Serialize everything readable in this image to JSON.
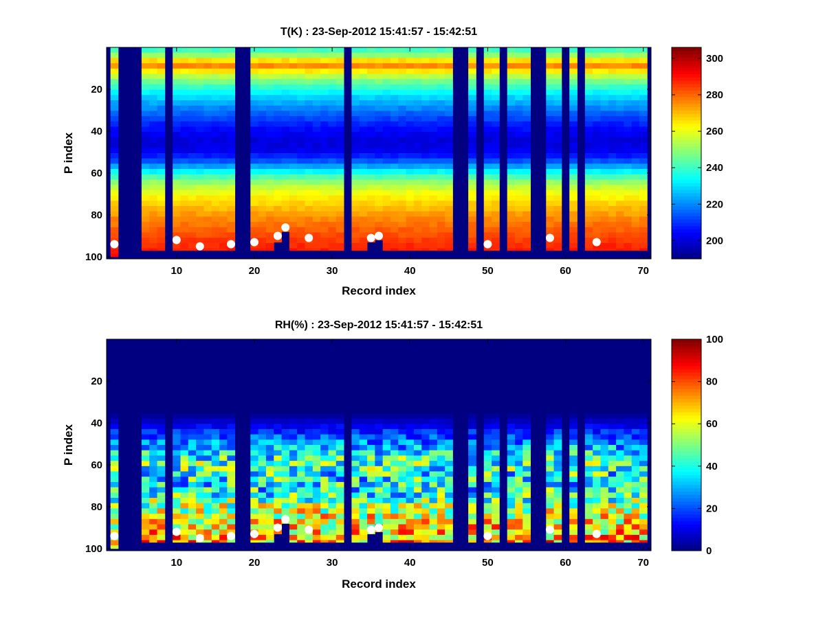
{
  "chart_data": [
    {
      "type": "heatmap",
      "title": "T(K) : 23-Sep-2012 15:41:57 - 15:42:51",
      "xlabel": "Record index",
      "ylabel": "P index",
      "xlim": [
        1,
        71
      ],
      "ylim": [
        0,
        101
      ],
      "y_reversed": true,
      "xticks": [
        10,
        20,
        30,
        40,
        50,
        60,
        70
      ],
      "yticks": [
        20,
        40,
        60,
        80,
        100
      ],
      "colormap": "jet",
      "clim": [
        190,
        306
      ],
      "colorbar_ticks": [
        200,
        220,
        240,
        260,
        280,
        300
      ],
      "missing_records": [
        1,
        3,
        4,
        5,
        9,
        18,
        19,
        32,
        46,
        47,
        49,
        52,
        56,
        57,
        60,
        62
      ],
      "bottom_levels": {
        "2": 100,
        "6": 97,
        "7": 97,
        "8": 97,
        "10": 97,
        "11": 97,
        "12": 97,
        "13": 97,
        "14": 97,
        "15": 97,
        "16": 97,
        "17": 97,
        "20": 97,
        "21": 97,
        "22": 97,
        "23": 93,
        "24": 88,
        "25": 97,
        "26": 97,
        "27": 97,
        "28": 97,
        "29": 97,
        "30": 97,
        "31": 97,
        "33": 97,
        "34": 97,
        "35": 93,
        "36": 92,
        "37": 97,
        "38": 97,
        "39": 97,
        "40": 97,
        "41": 97,
        "42": 97,
        "43": 97,
        "44": 97,
        "45": 97,
        "48": 97,
        "50": 97,
        "51": 97,
        "53": 97,
        "54": 97,
        "55": 97,
        "58": 97,
        "59": 97,
        "61": 97,
        "63": 97,
        "64": 97,
        "65": 97,
        "66": 97,
        "67": 97,
        "68": 97,
        "69": 97,
        "70": 97
      },
      "profile": [
        [
          1,
          240
        ],
        [
          5,
          255
        ],
        [
          8,
          280
        ],
        [
          10,
          270
        ],
        [
          15,
          250
        ],
        [
          22,
          232
        ],
        [
          30,
          218
        ],
        [
          38,
          206
        ],
        [
          45,
          200
        ],
        [
          50,
          203
        ],
        [
          55,
          216
        ],
        [
          60,
          236
        ],
        [
          65,
          252
        ],
        [
          70,
          262
        ],
        [
          75,
          268
        ],
        [
          80,
          274
        ],
        [
          85,
          279
        ],
        [
          90,
          283
        ],
        [
          97,
          289
        ]
      ],
      "markers": [
        [
          2,
          94
        ],
        [
          10,
          92
        ],
        [
          13,
          95
        ],
        [
          17,
          94
        ],
        [
          20,
          93
        ],
        [
          23,
          90
        ],
        [
          24,
          86
        ],
        [
          27,
          91
        ],
        [
          35,
          91
        ],
        [
          36,
          90
        ],
        [
          50,
          94
        ],
        [
          58,
          91
        ],
        [
          64,
          93
        ]
      ]
    },
    {
      "type": "heatmap",
      "title": "RH(%) : 23-Sep-2012 15:41:57 - 15:42:51",
      "xlabel": "Record index",
      "ylabel": "P index",
      "xlim": [
        1,
        71
      ],
      "ylim": [
        0,
        101
      ],
      "y_reversed": true,
      "xticks": [
        10,
        20,
        30,
        40,
        50,
        60,
        70
      ],
      "yticks": [
        20,
        40,
        60,
        80,
        100
      ],
      "colormap": "jet",
      "clim": [
        0,
        100
      ],
      "colorbar_ticks": [
        0,
        20,
        40,
        60,
        80,
        100
      ],
      "missing_records": [
        1,
        3,
        4,
        5,
        9,
        18,
        19,
        32,
        46,
        47,
        49,
        52,
        56,
        57,
        60,
        62
      ],
      "bottom_levels": {
        "2": 100,
        "6": 97,
        "7": 97,
        "8": 97,
        "10": 97,
        "11": 97,
        "12": 97,
        "13": 97,
        "14": 97,
        "15": 97,
        "16": 97,
        "17": 97,
        "20": 97,
        "21": 97,
        "22": 97,
        "23": 93,
        "24": 88,
        "25": 97,
        "26": 97,
        "27": 97,
        "28": 97,
        "29": 97,
        "30": 97,
        "31": 97,
        "33": 97,
        "34": 97,
        "35": 93,
        "36": 92,
        "37": 97,
        "38": 97,
        "39": 97,
        "40": 97,
        "41": 97,
        "42": 97,
        "43": 97,
        "44": 97,
        "45": 97,
        "48": 97,
        "50": 97,
        "51": 97,
        "53": 97,
        "54": 97,
        "55": 97,
        "58": 97,
        "59": 97,
        "61": 97,
        "63": 97,
        "64": 97,
        "65": 97,
        "66": 97,
        "67": 97,
        "68": 97,
        "69": 97,
        "70": 97
      },
      "profile": [
        [
          1,
          0
        ],
        [
          35,
          0
        ],
        [
          40,
          8
        ],
        [
          45,
          18
        ],
        [
          50,
          26
        ],
        [
          55,
          38
        ],
        [
          60,
          46
        ],
        [
          65,
          38
        ],
        [
          70,
          36
        ],
        [
          75,
          42
        ],
        [
          80,
          55
        ],
        [
          85,
          60
        ],
        [
          90,
          64
        ],
        [
          97,
          70
        ]
      ],
      "markers": [
        [
          2,
          94
        ],
        [
          10,
          92
        ],
        [
          13,
          95
        ],
        [
          17,
          94
        ],
        [
          20,
          93
        ],
        [
          23,
          90
        ],
        [
          24,
          86
        ],
        [
          27,
          91
        ],
        [
          35,
          91
        ],
        [
          36,
          90
        ],
        [
          50,
          94
        ],
        [
          58,
          91
        ],
        [
          64,
          93
        ]
      ]
    }
  ]
}
